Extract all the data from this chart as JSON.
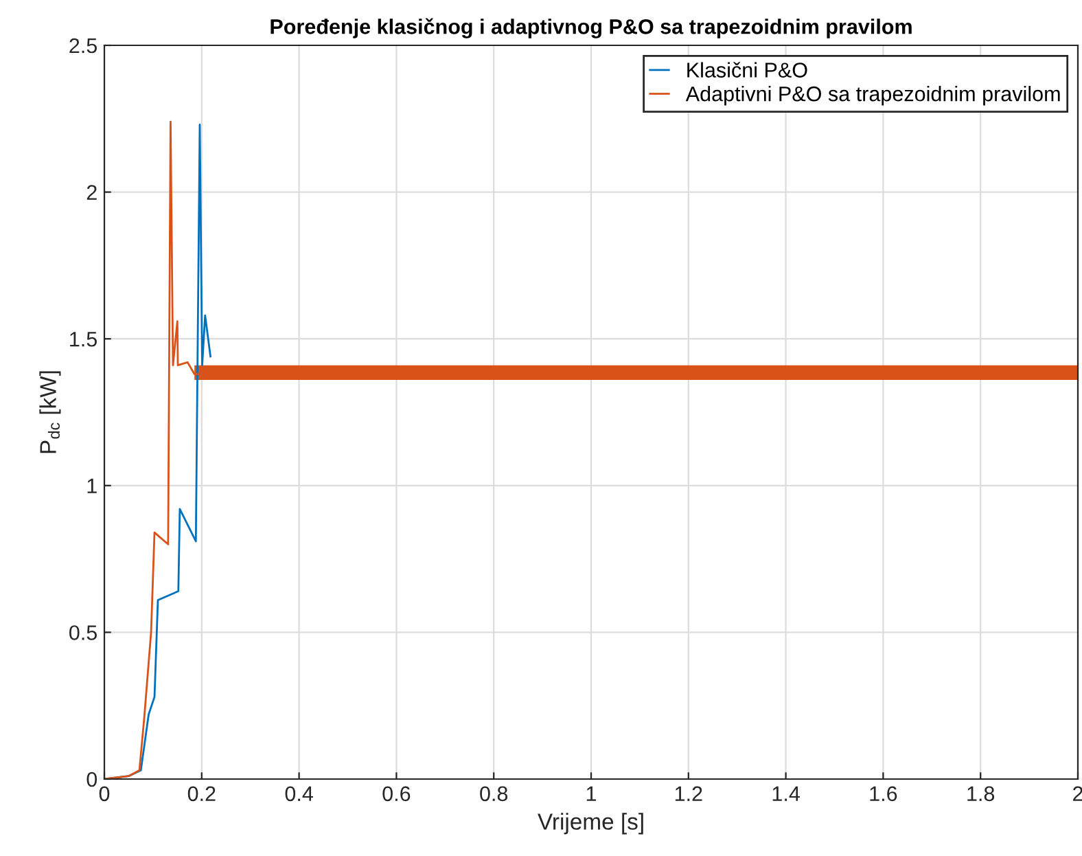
{
  "chart_data": {
    "type": "line",
    "title": "Poređenje klasičnog i adaptivnog P&O sa trapezoidnim pravilom",
    "xlabel": "Vrijeme [s]",
    "ylabel": "P$_{dc}$ [kW]",
    "xlim": [
      0,
      2
    ],
    "ylim": [
      0,
      2.5
    ],
    "xticks": [
      0,
      0.2,
      0.4,
      0.6,
      0.8,
      1,
      1.2,
      1.4,
      1.6,
      1.8,
      2
    ],
    "yticks": [
      0,
      0.5,
      1,
      1.5,
      2,
      2.5
    ],
    "grid": true,
    "legend": "top right",
    "line_style": "solid",
    "series": [
      {
        "name": "Klasični P&O",
        "color": "#0072bd",
        "x": [
          0,
          0.05,
          0.075,
          0.091,
          0.103,
          0.11,
          0.152,
          0.155,
          0.188,
          0.196,
          0.201,
          0.207,
          0.218
        ],
        "values": [
          0,
          0.01,
          0.03,
          0.22,
          0.28,
          0.61,
          0.64,
          0.92,
          0.81,
          2.23,
          1.41,
          1.58,
          1.44
        ]
      },
      {
        "name": "Adaptivni P&O sa trapezoidnim pravilom",
        "color": "#d95319",
        "x": [
          0,
          0.05,
          0.072,
          0.082,
          0.096,
          0.103,
          0.131,
          0.136,
          0.141,
          0.15,
          0.151,
          0.171,
          0.185,
          0.5,
          0.75,
          1,
          1.25,
          1.5,
          1.75,
          2
        ],
        "values": [
          0,
          0.01,
          0.03,
          0.21,
          0.5,
          0.84,
          0.8,
          2.24,
          1.41,
          1.56,
          1.41,
          1.42,
          1.38,
          1.38,
          1.38,
          1.38,
          1.38,
          1.38,
          1.38,
          1.38
        ],
        "lower": [
          null,
          null,
          null,
          null,
          null,
          null,
          null,
          null,
          null,
          null,
          null,
          null,
          1.36,
          1.36,
          1.36,
          1.36,
          1.36,
          1.36,
          1.36,
          1.36
        ],
        "upper": [
          null,
          null,
          null,
          null,
          null,
          null,
          null,
          null,
          null,
          null,
          null,
          null,
          1.41,
          1.41,
          1.41,
          1.41,
          1.41,
          1.41,
          1.41,
          1.41
        ]
      }
    ]
  }
}
